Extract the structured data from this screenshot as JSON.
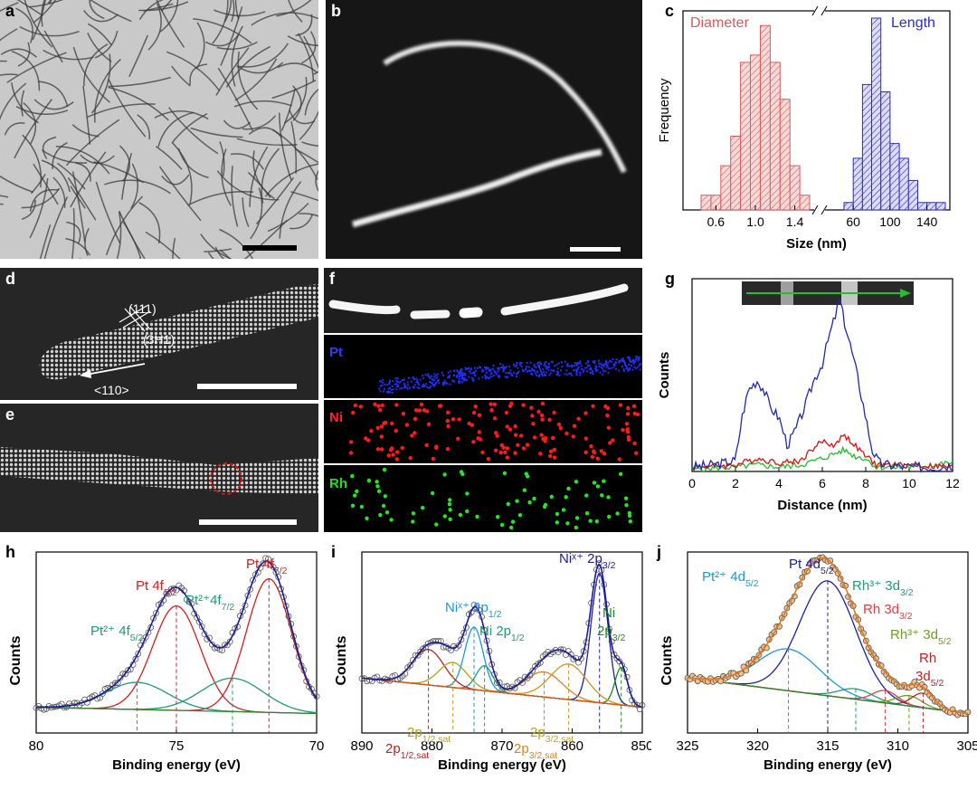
{
  "panels": {
    "a": {
      "label": "a"
    },
    "b": {
      "label": "b"
    },
    "c": {
      "label": "c"
    },
    "d": {
      "label": "d",
      "ann1": "(111)",
      "ann2": "(3Ħ1)",
      "dir": "<110>"
    },
    "e": {
      "label": "e"
    },
    "f": {
      "label": "f",
      "maps": [
        "Pt",
        "Ni",
        "Rh"
      ]
    },
    "g": {
      "label": "g"
    },
    "h": {
      "label": "h"
    },
    "i": {
      "label": "i"
    },
    "j": {
      "label": "j"
    }
  },
  "colors": {
    "pt": "#1f2aa6",
    "ni": "#e01010",
    "rh": "#22c02a",
    "diameter": "#d95b5b",
    "length": "#2b2bc4"
  },
  "chart_data": [
    {
      "id": "c",
      "type": "bar",
      "xlabel": "Size (nm)",
      "ylabel": "Frequency",
      "series": [
        {
          "name": "Diameter",
          "x": [
            0.5,
            0.6,
            0.7,
            0.8,
            0.9,
            1.0,
            1.1,
            1.2,
            1.3,
            1.4,
            1.5
          ],
          "values": [
            2,
            2,
            6,
            10,
            20,
            21,
            25,
            20,
            15,
            6,
            2
          ]
        },
        {
          "name": "Length",
          "x": [
            55,
            65,
            75,
            85,
            95,
            105,
            115,
            125,
            135,
            145,
            155
          ],
          "values": [
            1,
            7,
            17,
            26,
            16,
            9,
            7,
            4,
            1,
            1,
            1
          ]
        }
      ],
      "diameter_ticks": [
        "0.6",
        "1.0",
        "1.4"
      ],
      "length_ticks": [
        "60",
        "100",
        "140"
      ]
    },
    {
      "id": "g",
      "type": "line",
      "xlabel": "Distance (nm)",
      "ylabel": "Counts",
      "xlim": [
        0,
        12
      ],
      "xticks": [
        "0",
        "2",
        "4",
        "6",
        "8",
        "10",
        "12"
      ],
      "series": [
        {
          "name": "Pt",
          "x": [
            0,
            1,
            2,
            2.3,
            2.6,
            3,
            3.3,
            3.6,
            4,
            4.4,
            4.8,
            5.2,
            5.6,
            6,
            6.3,
            6.6,
            6.8,
            7,
            7.3,
            7.6,
            8,
            8.3,
            8.6,
            9,
            10,
            11,
            12
          ],
          "y": [
            0.02,
            0.03,
            0.05,
            0.25,
            0.38,
            0.42,
            0.38,
            0.3,
            0.25,
            0.12,
            0.2,
            0.3,
            0.42,
            0.5,
            0.62,
            0.72,
            0.8,
            0.7,
            0.58,
            0.45,
            0.25,
            0.1,
            0.04,
            0.03,
            0.02,
            0.02,
            0.03
          ]
        },
        {
          "name": "Ni",
          "x": [
            0,
            2,
            3,
            4,
            5,
            5.5,
            6,
            6.5,
            7,
            7.5,
            8,
            8.5,
            9,
            10,
            12
          ],
          "y": [
            0.02,
            0.03,
            0.06,
            0.04,
            0.05,
            0.1,
            0.14,
            0.12,
            0.17,
            0.12,
            0.07,
            0.03,
            0.03,
            0.03,
            0.02
          ]
        },
        {
          "name": "Rh",
          "x": [
            0,
            2,
            3,
            4,
            5,
            6,
            6.5,
            7,
            7.5,
            8,
            8.5,
            9,
            10,
            12
          ],
          "y": [
            0.01,
            0.02,
            0.03,
            0.02,
            0.03,
            0.06,
            0.08,
            0.1,
            0.07,
            0.06,
            0.02,
            0.02,
            0.02,
            0.04
          ]
        }
      ]
    },
    {
      "id": "h",
      "type": "line",
      "xlabel": "Binding energy (eV)",
      "ylabel": "Counts",
      "xlim": [
        80,
        70
      ],
      "xticks": [
        "80",
        "75",
        "70"
      ],
      "peak_labels": [
        "Pt 4f5/2",
        "Pt 4f7/2",
        "Pt²⁺ 4f5/2",
        "Pt²⁺4f7/2"
      ],
      "peaks": [
        {
          "center": 75.0,
          "height": 0.5,
          "width": 0.85
        },
        {
          "center": 71.7,
          "height": 0.64,
          "width": 0.8
        },
        {
          "center": 76.4,
          "height": 0.13,
          "width": 1.1
        },
        {
          "center": 73.0,
          "height": 0.16,
          "width": 1.1
        }
      ],
      "background": [
        0.08,
        0.05
      ]
    },
    {
      "id": "i",
      "type": "line",
      "xlabel": "Binding energy (eV)",
      "ylabel": "Counts",
      "xlim": [
        890,
        850
      ],
      "xticks": [
        "890",
        "880",
        "870",
        "860",
        "850"
      ],
      "peak_labels": [
        "Niˣ⁺ 2p3/2",
        "Niˣ⁺ 2p1/2",
        "Ni 2p1/2",
        "Ni 2p3/2",
        "2p1/2,sat",
        "2p1/2,sat",
        "2p3/2,sat",
        "2p3/2,sat"
      ],
      "peaks": [
        {
          "center": 856.1,
          "height": 0.62,
          "width": 1.2
        },
        {
          "center": 874.0,
          "height": 0.3,
          "width": 1.3
        },
        {
          "center": 872.5,
          "height": 0.12,
          "width": 1.2
        },
        {
          "center": 853.0,
          "height": 0.18,
          "width": 0.9
        },
        {
          "center": 880.5,
          "height": 0.17,
          "width": 2.2
        },
        {
          "center": 877.0,
          "height": 0.12,
          "width": 2.0
        },
        {
          "center": 864.0,
          "height": 0.12,
          "width": 2.6
        },
        {
          "center": 860.5,
          "height": 0.17,
          "width": 2.6
        }
      ],
      "background": [
        0.22,
        0.08
      ]
    },
    {
      "id": "j",
      "type": "line",
      "xlabel": "Binding energy (eV)",
      "ylabel": "Counts",
      "xlim": [
        325,
        305
      ],
      "xticks": [
        "325",
        "320",
        "315",
        "310",
        "305"
      ],
      "peak_labels": [
        "Pt 4d5/2",
        "Pt²⁺ 4d5/2",
        "Rh³⁺ 3d3/2",
        "Rh 3d3/2",
        "Rh³⁺ 3d5/2",
        "Rh 3d5/2"
      ],
      "peaks": [
        {
          "center": 315.0,
          "height": 0.55,
          "width": 2.0
        },
        {
          "center": 317.8,
          "height": 0.2,
          "width": 2.2
        },
        {
          "center": 313.0,
          "height": 0.05,
          "width": 1.2
        },
        {
          "center": 310.9,
          "height": 0.06,
          "width": 0.9
        },
        {
          "center": 309.2,
          "height": 0.05,
          "width": 0.9
        },
        {
          "center": 308.2,
          "height": 0.07,
          "width": 0.8
        }
      ],
      "background": [
        0.22,
        0.05
      ]
    }
  ]
}
